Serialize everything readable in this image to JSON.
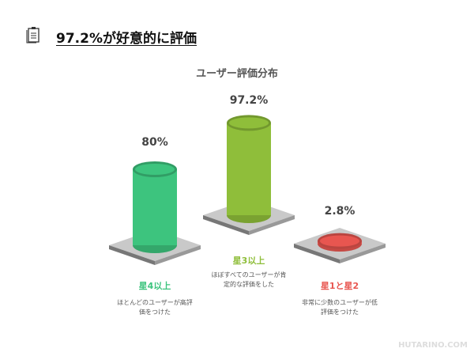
{
  "heading": {
    "title": "97.2%が好意的に評価"
  },
  "chart_data": {
    "type": "bar",
    "title": "ユーザー評価分布",
    "categories": [
      "星4以上",
      "星3以上",
      "星1と星2"
    ],
    "values": [
      80,
      97.2,
      2.8
    ],
    "value_labels": [
      "80%",
      "97.2%",
      "2.8%"
    ],
    "descriptions": [
      "ほとんどのユーザーが高評価をつけた",
      "ほぼすべてのユーザーが肯定的な評価をした",
      "非常に少数のユーザーが低評価をつけた"
    ],
    "colors": [
      "#3dc47e",
      "#8fbe3a",
      "#e85650"
    ]
  },
  "watermark": "HUTARINO.COM"
}
